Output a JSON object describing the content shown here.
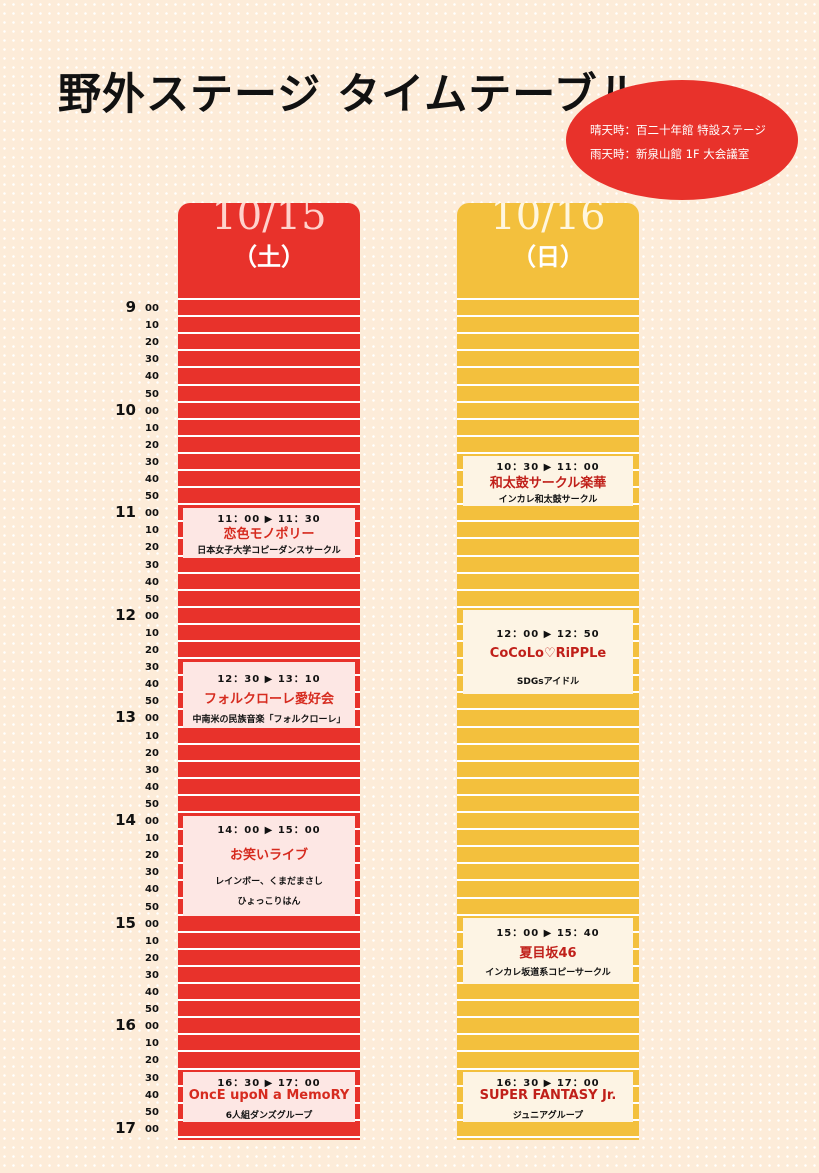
{
  "title": "野外ステージ タイムテーブル",
  "venue": {
    "sunny": "晴天時：百二十年館 特設ステージ",
    "rainy": "雨天時：新泉山館 1F 大会議室"
  },
  "days": {
    "sat": {
      "date": "10/15",
      "dow": "（土）"
    },
    "sun": {
      "date": "10/16",
      "dow": "（日）"
    }
  },
  "hours": [
    "9",
    "10",
    "11",
    "12",
    "13",
    "14",
    "15",
    "16",
    "17"
  ],
  "minutes": [
    "00",
    "10",
    "20",
    "30",
    "40",
    "50"
  ],
  "events": {
    "sat": [
      {
        "time": "11：00 ▶ 11：30",
        "name": "恋色モノポリー",
        "sub": "日本女子大学コピーダンスサークル"
      },
      {
        "time": "12：30 ▶ 13：10",
        "name": "フォルクローレ愛好会",
        "sub": "中南米の民族音楽「フォルクローレ」"
      },
      {
        "time": "14：00 ▶ 15：00",
        "name": "お笑いライブ",
        "sub": "レインボー、くまだまさし",
        "sub2": "ひょっこりはん"
      },
      {
        "time": "16：30 ▶ 17：00",
        "name": "OncE upoN a MemoRY",
        "sub": "6人組ダンズグループ"
      }
    ],
    "sun": [
      {
        "time": "10：30 ▶ 11：00",
        "name": "和太鼓サークル楽華",
        "sub": "インカレ和太鼓サークル"
      },
      {
        "time": "12：00 ▶ 12：50",
        "name": "CoCoLo♡RiPPLe",
        "sub": "SDGsアイドル"
      },
      {
        "time": "15：00 ▶ 15：40",
        "name": "夏目坂46",
        "sub": "インカレ坂道系コピーサークル"
      },
      {
        "time": "16：30 ▶ 17：00",
        "name": "SUPER FANTASY Jr.",
        "sub": "ジュニアグループ"
      }
    ]
  }
}
